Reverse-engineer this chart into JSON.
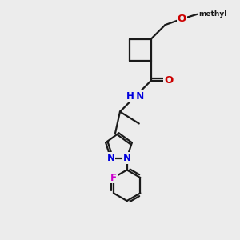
{
  "background_color": "#ececec",
  "bond_color": "#1a1a1a",
  "bond_width": 1.6,
  "atom_colors": {
    "O": "#cc0000",
    "N": "#0000dd",
    "F": "#cc00cc",
    "H": "#008080",
    "C": "#1a1a1a"
  },
  "font_size": 8.5,
  "fig_size": [
    3.0,
    3.0
  ],
  "dpi": 100
}
